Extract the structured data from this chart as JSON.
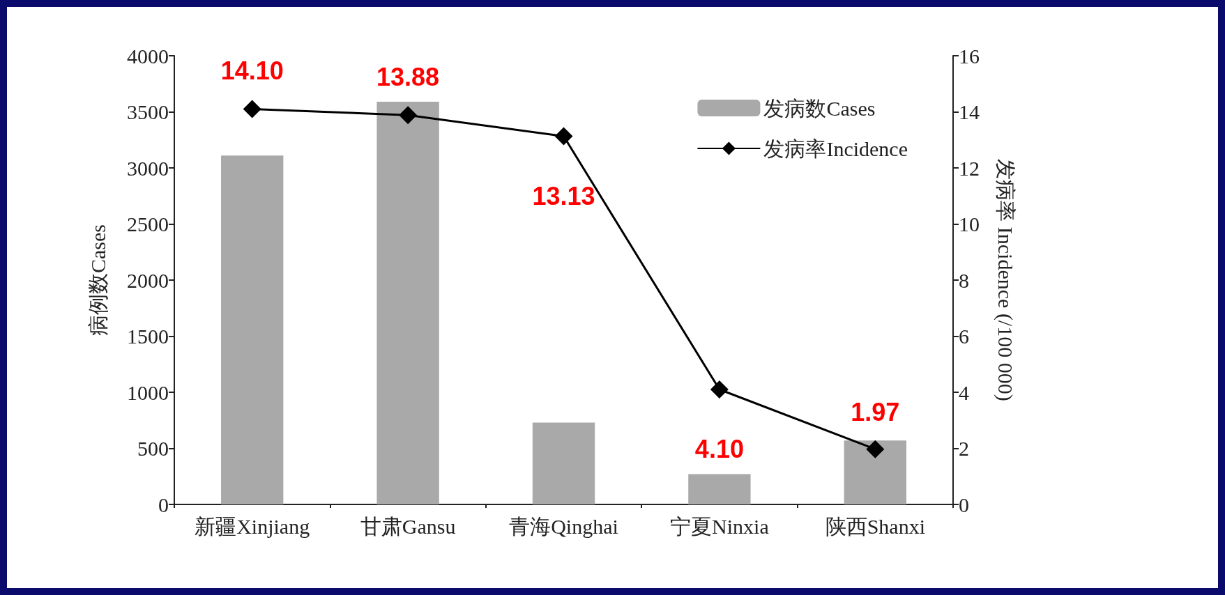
{
  "chart_data": {
    "type": "bar",
    "categories": [
      "新疆Xinjiang",
      "甘肃Gansu",
      "青海Qinghai",
      "宁夏Ninxia",
      "陕西Shanxi"
    ],
    "ylabel": "病例数Cases",
    "y2label": "发病率 Incidence (/100 000)",
    "series": [
      {
        "name": "发病数Cases",
        "color": "#a9a9a9",
        "values": [
          3110,
          3590,
          730,
          270,
          570
        ]
      },
      {
        "name": "发病率Incidence",
        "type": "line",
        "axis": "y2",
        "color": "#000000",
        "marker": "diamond",
        "values": [
          14.1,
          13.88,
          13.13,
          4.1,
          1.97
        ],
        "value_labels": [
          "14.10",
          "13.88",
          "13.13",
          "4.10",
          "1.97"
        ]
      }
    ],
    "ylim": [
      0,
      4000
    ],
    "yticks": [
      0,
      500,
      1000,
      1500,
      2000,
      2500,
      3000,
      3500,
      4000
    ],
    "y2lim": [
      0,
      16
    ],
    "y2ticks": [
      0,
      2,
      4,
      6,
      8,
      10,
      12,
      14,
      16
    ],
    "grid": false,
    "legend": "top right"
  }
}
